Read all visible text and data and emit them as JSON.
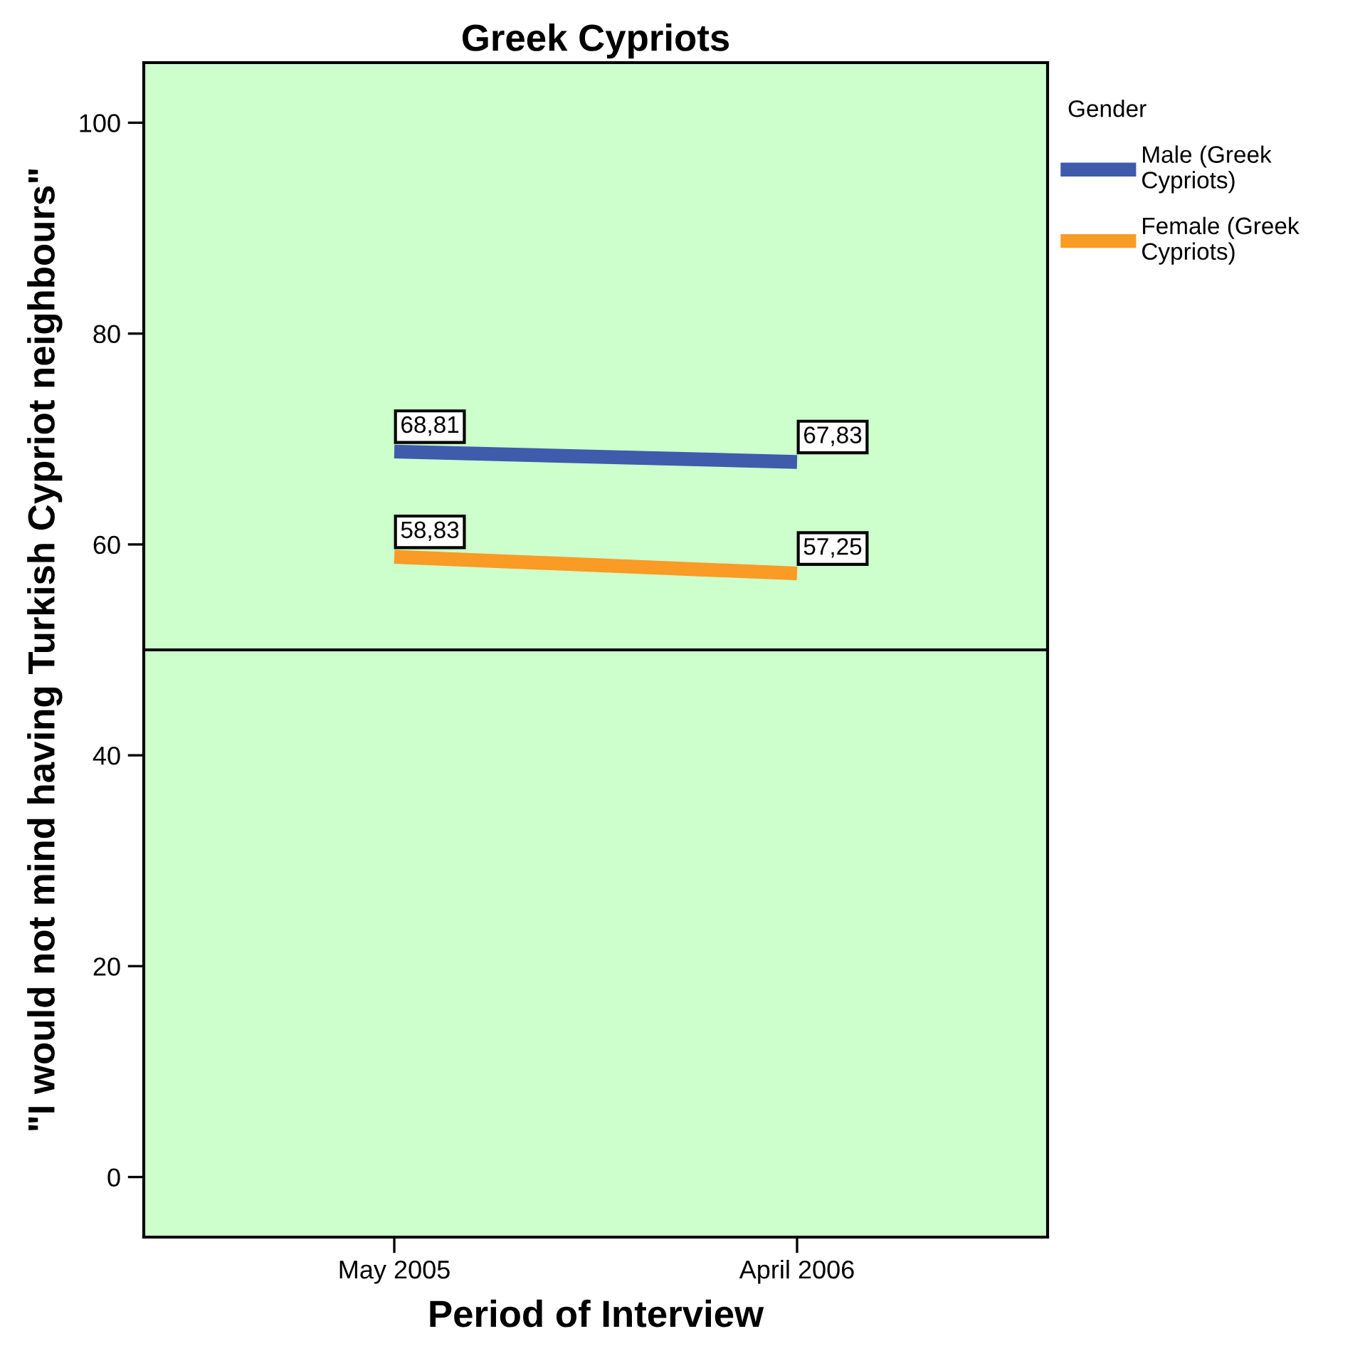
{
  "chart_data": {
    "type": "line",
    "title": "Greek Cypriots",
    "xlabel": "Period of Interview",
    "ylabel": "\"I would not mind having Turkish Cypriot neighbours\"",
    "legend_title": "Gender",
    "categories": [
      "May 2005",
      "April 2006"
    ],
    "series": [
      {
        "name": "Male (Greek Cypriots)",
        "color": "#3f5bab",
        "values": [
          68.81,
          67.83
        ],
        "value_labels": [
          "68,81",
          "67,83"
        ]
      },
      {
        "name": "Female (Greek Cypriots)",
        "color": "#f99b25",
        "values": [
          58.83,
          57.25
        ],
        "value_labels": [
          "58,83",
          "57,25"
        ]
      }
    ],
    "ylim": [
      -5.7,
      105.7
    ],
    "yticks": [
      0,
      20,
      40,
      60,
      80,
      100
    ],
    "ref_lines": [
      {
        "axis": "y",
        "value": 50,
        "color": "#000000"
      }
    ],
    "grid": false,
    "legend": "top right",
    "marker": "none",
    "line_style": "solid"
  }
}
